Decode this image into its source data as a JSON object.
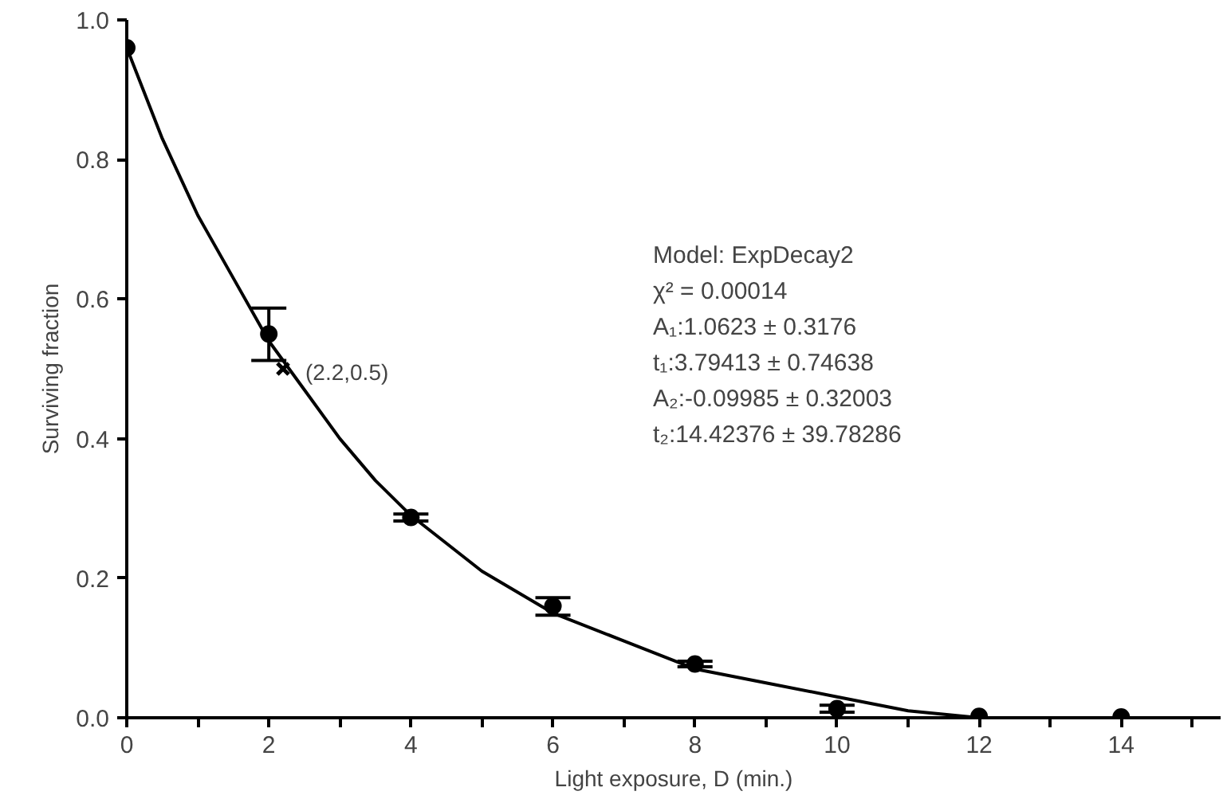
{
  "chart_data": {
    "type": "scatter",
    "xlabel": "Light exposure, D (min.)",
    "ylabel": "Surviving fraction",
    "xlim": [
      0,
      15.4
    ],
    "ylim": [
      0,
      1.0
    ],
    "xticks": [
      0,
      {
        "value": 1,
        "label": null
      },
      2,
      {
        "value": 3,
        "label": null
      },
      4,
      {
        "value": 5,
        "label": null
      },
      6,
      {
        "value": 7,
        "label": null
      },
      8,
      {
        "value": 9,
        "label": null
      },
      10,
      {
        "value": 11,
        "label": null
      },
      12,
      {
        "value": 13,
        "label": null
      },
      14,
      {
        "value": 15,
        "label": null
      }
    ],
    "yticks": [
      {
        "value": 0,
        "label": "0.0"
      },
      0.2,
      0.4,
      0.6,
      0.8,
      {
        "value": 1,
        "label": "1.0"
      }
    ],
    "grid": false,
    "series": [
      {
        "marker": "circle",
        "color": "#000000",
        "x": [
          0,
          2,
          4,
          6,
          8,
          10,
          12,
          14
        ],
        "values": [
          0.96,
          0.55,
          0.287,
          0.16,
          0.077,
          0.013,
          0.002,
          0.001
        ],
        "errors": [
          null,
          [
            0.512,
            0.587
          ],
          [
            0.282,
            0.292
          ],
          [
            0.147,
            0.172
          ],
          [
            0.073,
            0.081
          ],
          [
            0.008,
            0.018
          ],
          null,
          null
        ]
      },
      {
        "type": "line",
        "line_style": "solid",
        "color": "#000000",
        "x": [
          0,
          0.5,
          1,
          1.5,
          2,
          2.5,
          3,
          3.5,
          4,
          5,
          6,
          7,
          8,
          9,
          10,
          11,
          12
        ],
        "values": [
          0.96,
          0.83,
          0.72,
          0.63,
          0.54,
          0.47,
          0.4,
          0.34,
          0.29,
          0.21,
          0.15,
          0.11,
          0.07,
          0.05,
          0.03,
          0.01,
          0.0
        ]
      },
      {
        "marker": "cross",
        "color": "#000000",
        "x": [
          2.2
        ],
        "values": [
          0.5
        ]
      }
    ],
    "annotations": [
      {
        "text": "(2.2,0.5)",
        "x": 2.2,
        "y": 0.5
      },
      "Model: ExpDecay2",
      "χ² = 0.00014",
      "A₁:1.0623 ± 0.3176",
      "t₁:3.79413 ± 0.74638",
      "A₂:-0.09985 ± 0.32003",
      "t₂:14.42376 ± 39.78286"
    ]
  }
}
